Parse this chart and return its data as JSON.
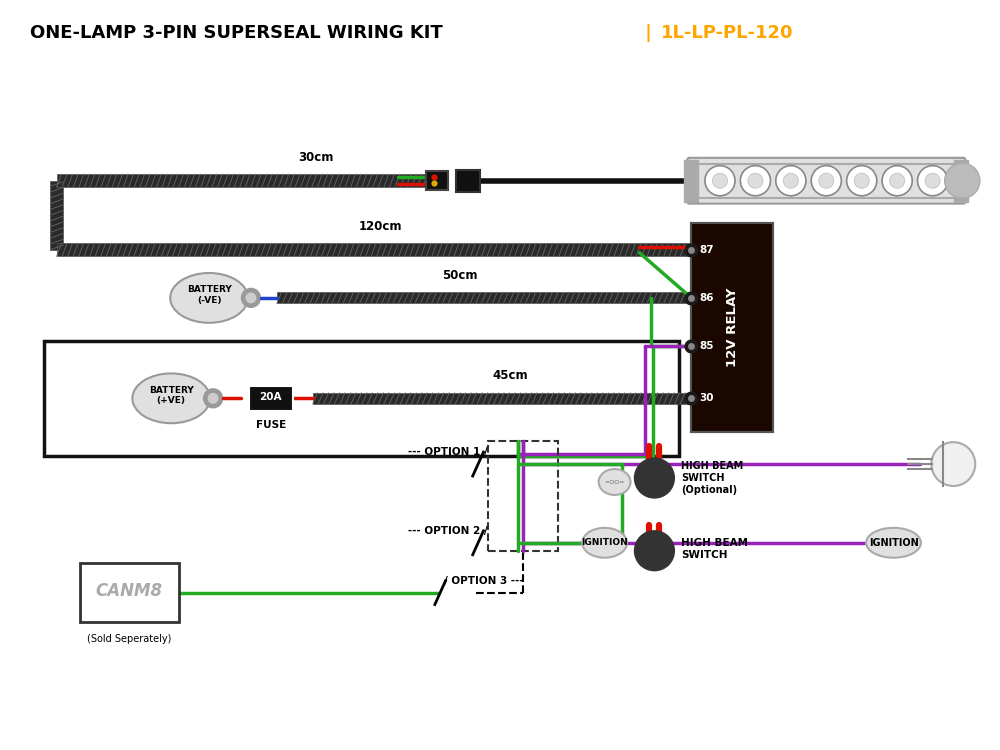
{
  "title_black": "ONE-LAMP 3-PIN SUPERSEAL WIRING KIT",
  "title_sep": " | ",
  "title_orange": "1L-LP-PL-120",
  "bg": "#ffffff",
  "relay_bg": "#1a0800",
  "relay_pins": [
    "87",
    "86",
    "85",
    "30"
  ],
  "labels": {
    "30cm": "30cm",
    "120cm": "120cm",
    "50cm": "50cm",
    "45cm": "45cm",
    "bat_neg": "BATTERY\n(-VE)",
    "bat_pos": "BATTERY\n(+VE)",
    "fuse_val": "20A",
    "fuse_lbl": "FUSE",
    "relay": "12V RELAY",
    "opt1": "OPTION 1",
    "opt2": "OPTION 2",
    "opt3": "OPTION 3",
    "hbs1": "HIGH BEAM\nSWITCH",
    "optional": "(Optional)",
    "hbs2": "HIGH BEAM\nSWITCH",
    "ign1": "IGNITION",
    "ign2": "IGNITION",
    "canm8": "CANM8",
    "sold": "(Sold Seperately)"
  },
  "colors": {
    "black": "#111111",
    "darkbrown": "#1a0800",
    "red": "#dd1100",
    "green": "#22aa22",
    "purple": "#9922bb",
    "blue": "#2244cc",
    "yellow": "#ddaa00",
    "gray": "#888888",
    "hatch_fill": "#2a2a2a",
    "hatch_line": "#666666",
    "wire_bg": "#111111"
  }
}
